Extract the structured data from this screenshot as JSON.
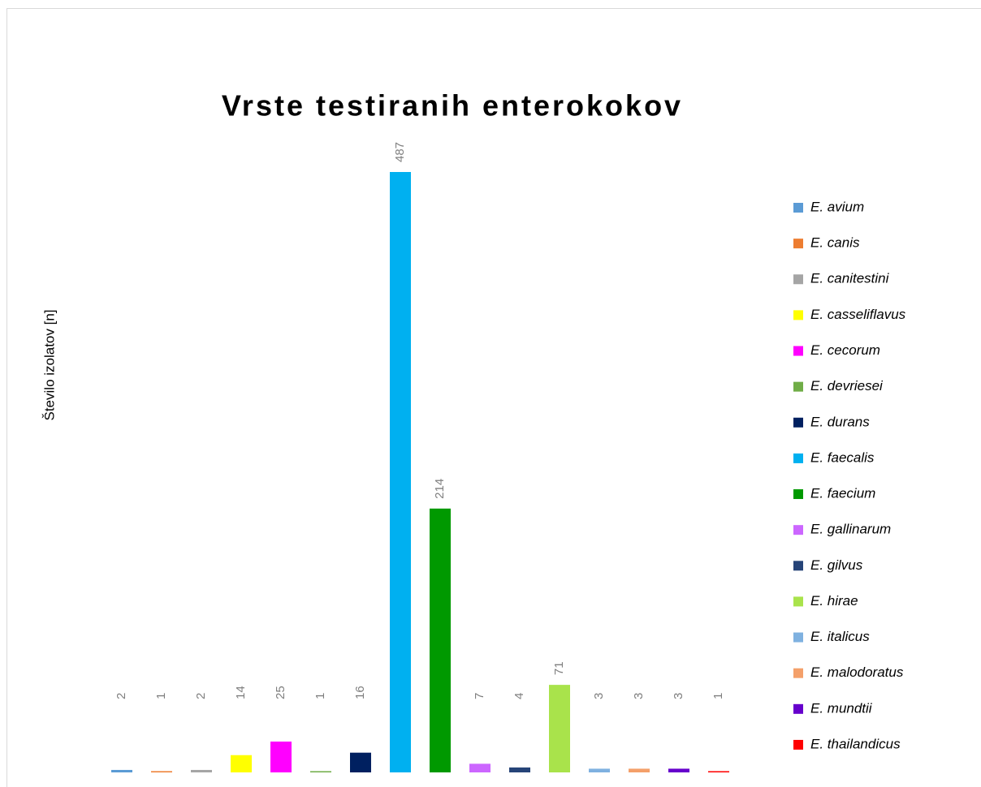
{
  "chart_data": {
    "type": "bar",
    "title": "Vrste testiranih enterokokov",
    "y_label": "Število izolatov [n]",
    "series": [
      {
        "name": "E. avium",
        "color": "#5b9bd5",
        "values": [
          2
        ]
      },
      {
        "name": "E. canis",
        "color": "#ed7d31",
        "values": [
          1
        ]
      },
      {
        "name": "E. canitestini",
        "color": "#a5a5a5",
        "values": [
          2
        ]
      },
      {
        "name": "E. casseliflavus",
        "color": "#ffff00",
        "values": [
          14
        ]
      },
      {
        "name": "E. cecorum",
        "color": "#ff00ff",
        "values": [
          25
        ]
      },
      {
        "name": "E. devriesei",
        "color": "#70ad47",
        "values": [
          1
        ]
      },
      {
        "name": "E. durans",
        "color": "#002060",
        "values": [
          16
        ]
      },
      {
        "name": "E. faecalis",
        "color": "#00b0f0",
        "values": [
          487
        ]
      },
      {
        "name": "E. faecium",
        "color": "#009900",
        "values": [
          214
        ]
      },
      {
        "name": "E. gallinarum",
        "color": "#cc66ff",
        "values": [
          7
        ]
      },
      {
        "name": "E. gilvus",
        "color": "#264478",
        "values": [
          4
        ]
      },
      {
        "name": "E. hirae",
        "color": "#a9e34b",
        "values": [
          71
        ]
      },
      {
        "name": "E. italicus",
        "color": "#7fb1e0",
        "values": [
          3
        ]
      },
      {
        "name": "E. malodoratus",
        "color": "#f4a06a",
        "values": [
          3
        ]
      },
      {
        "name": "E. mundtii",
        "color": "#6600cc",
        "values": [
          3
        ]
      },
      {
        "name": "E. thailandicus",
        "color": "#ff0000",
        "values": [
          1
        ]
      }
    ],
    "legend": "right"
  }
}
